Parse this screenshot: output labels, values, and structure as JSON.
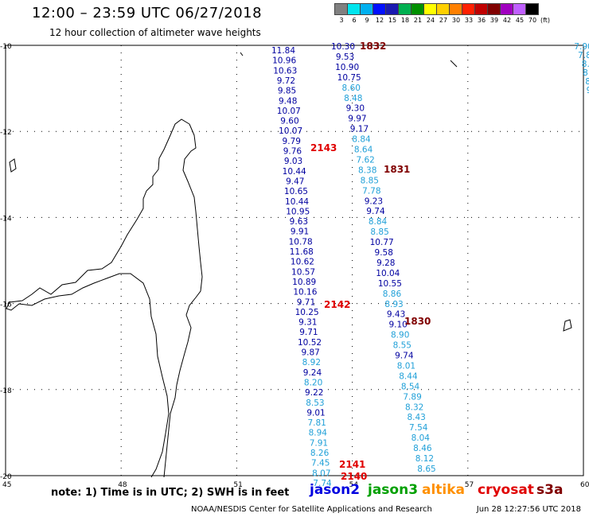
{
  "header": {
    "title": "12:00 – 23:59 UTC 06/27/2018",
    "subtitle": "12 hour collection of altimeter wave heights"
  },
  "scale": {
    "colors": [
      "#808080",
      "#00e5ee",
      "#00b0f0",
      "#0010ff",
      "#1a1ab0",
      "#00b050",
      "#009000",
      "#ffff00",
      "#ffd000",
      "#ff8000",
      "#ff2000",
      "#c00000",
      "#800000",
      "#a000c0",
      "#c060ff",
      "#000000"
    ],
    "labels": [
      "3",
      "6",
      "9",
      "12",
      "15",
      "18",
      "21",
      "24",
      "27",
      "30",
      "33",
      "36",
      "39",
      "42",
      "45",
      "70",
      "(ft)"
    ]
  },
  "map": {
    "lat_labels": [
      "-10",
      "-12",
      "-14",
      "-16",
      "-18",
      "-20"
    ],
    "lon_labels": [
      "45",
      "48",
      "51",
      "54",
      "57",
      "60"
    ],
    "lon_range": [
      45,
      60
    ],
    "lat_range": [
      -10,
      -20
    ]
  },
  "tracks": {
    "jason2_colors": {
      "dark": "#0000a0",
      "light": "#20a0d8"
    },
    "pass_colors": {
      "jason2": "#e00000",
      "s3a": "#800000"
    },
    "track_A": [
      {
        "v": "11.84",
        "c": "d"
      },
      {
        "v": "10.96",
        "c": "d"
      },
      {
        "v": "10.63",
        "c": "d"
      },
      {
        "v": "9.72",
        "c": "d"
      },
      {
        "v": "9.85",
        "c": "d"
      },
      {
        "v": "9.48",
        "c": "d"
      },
      {
        "v": "10.07",
        "c": "d"
      },
      {
        "v": "9.60",
        "c": "d"
      },
      {
        "v": "10.07",
        "c": "d"
      },
      {
        "v": "9.79",
        "c": "d"
      },
      {
        "v": "9.76",
        "c": "d"
      },
      {
        "v": "9.03",
        "c": "d"
      },
      {
        "v": "10.44",
        "c": "d"
      },
      {
        "v": "9.47",
        "c": "d"
      },
      {
        "v": "10.65",
        "c": "d"
      },
      {
        "v": "10.44",
        "c": "d"
      },
      {
        "v": "10.95",
        "c": "d"
      },
      {
        "v": "9.63",
        "c": "d"
      },
      {
        "v": "9.91",
        "c": "d"
      },
      {
        "v": "10.78",
        "c": "d"
      },
      {
        "v": "11.68",
        "c": "d"
      },
      {
        "v": "10.62",
        "c": "d"
      },
      {
        "v": "10.57",
        "c": "d"
      },
      {
        "v": "10.89",
        "c": "d"
      },
      {
        "v": "10.16",
        "c": "d"
      },
      {
        "v": "9.71",
        "c": "d"
      },
      {
        "v": "10.25",
        "c": "d"
      },
      {
        "v": "9.31",
        "c": "d"
      },
      {
        "v": "9.71",
        "c": "d"
      },
      {
        "v": "10.52",
        "c": "d"
      },
      {
        "v": "9.87",
        "c": "d"
      },
      {
        "v": "8.92",
        "c": "l"
      },
      {
        "v": "9.24",
        "c": "d"
      },
      {
        "v": "8.20",
        "c": "l"
      },
      {
        "v": "9.22",
        "c": "d"
      },
      {
        "v": "8.53",
        "c": "l"
      },
      {
        "v": "9.01",
        "c": "d"
      },
      {
        "v": "7.81",
        "c": "l"
      },
      {
        "v": "8.94",
        "c": "l"
      },
      {
        "v": "7.91",
        "c": "l"
      },
      {
        "v": "8.26",
        "c": "l"
      },
      {
        "v": "7.45",
        "c": "l"
      },
      {
        "v": "8.07",
        "c": "l"
      },
      {
        "v": "7.74",
        "c": "l"
      }
    ],
    "track_B": [
      {
        "v": "10.30",
        "c": "d"
      },
      {
        "v": "9.53",
        "c": "d"
      },
      {
        "v": "10.90",
        "c": "d"
      },
      {
        "v": "10.75",
        "c": "d"
      },
      {
        "v": "8.60",
        "c": "l"
      },
      {
        "v": "8.48",
        "c": "l"
      },
      {
        "v": "9.30",
        "c": "d"
      },
      {
        "v": "9.97",
        "c": "d"
      },
      {
        "v": "9.17",
        "c": "d"
      },
      {
        "v": "8.84",
        "c": "l"
      },
      {
        "v": "8.64",
        "c": "l"
      },
      {
        "v": "7.62",
        "c": "l"
      },
      {
        "v": "8.38",
        "c": "l"
      },
      {
        "v": "8.85",
        "c": "l"
      },
      {
        "v": "7.78",
        "c": "l"
      },
      {
        "v": "9.23",
        "c": "d"
      },
      {
        "v": "9.74",
        "c": "d"
      },
      {
        "v": "8.84",
        "c": "l"
      },
      {
        "v": "8.85",
        "c": "l"
      },
      {
        "v": "10.77",
        "c": "d"
      },
      {
        "v": "9.58",
        "c": "d"
      },
      {
        "v": "9.28",
        "c": "d"
      },
      {
        "v": "10.04",
        "c": "d"
      },
      {
        "v": "10.55",
        "c": "d"
      },
      {
        "v": "8.86",
        "c": "l"
      },
      {
        "v": "8.93",
        "c": "l"
      },
      {
        "v": "9.43",
        "c": "d"
      },
      {
        "v": "9.10",
        "c": "d"
      },
      {
        "v": "8.90",
        "c": "l"
      },
      {
        "v": "8.55",
        "c": "l"
      },
      {
        "v": "9.74",
        "c": "d"
      },
      {
        "v": "8.01",
        "c": "l"
      },
      {
        "v": "8.44",
        "c": "l"
      },
      {
        "v": "8.54",
        "c": "l"
      },
      {
        "v": "7.89",
        "c": "l"
      },
      {
        "v": "8.32",
        "c": "l"
      },
      {
        "v": "8.43",
        "c": "l"
      },
      {
        "v": "7.54",
        "c": "l"
      },
      {
        "v": "8.04",
        "c": "l"
      },
      {
        "v": "8.46",
        "c": "l"
      },
      {
        "v": "8.12",
        "c": "l"
      },
      {
        "v": "8.65",
        "c": "l"
      }
    ],
    "track_C": [
      {
        "v": "7.90",
        "c": "l"
      },
      {
        "v": "7.8",
        "c": "l"
      },
      {
        "v": "8.",
        "c": "l"
      },
      {
        "v": "8.",
        "c": "l"
      },
      {
        "v": "8",
        "c": "l"
      },
      {
        "v": "9",
        "c": "l"
      }
    ],
    "pass_labels": [
      {
        "text": "1832",
        "sat": "s3a"
      },
      {
        "text": "2143",
        "sat": "jason2"
      },
      {
        "text": "1831",
        "sat": "s3a"
      },
      {
        "text": "2142",
        "sat": "jason2"
      },
      {
        "text": "1830",
        "sat": "s3a"
      },
      {
        "text": "2141",
        "sat": "jason2"
      },
      {
        "text": "2140",
        "sat": "jason2"
      }
    ]
  },
  "legend": {
    "note": "note: 1) Time is in UTC; 2) SWH is in feet",
    "satellites": [
      {
        "name": "jason2",
        "color": "#0000e0"
      },
      {
        "name": "jason3",
        "color": "#00a000"
      },
      {
        "name": "altika",
        "color": "#ff9000"
      },
      {
        "name": "cryosat",
        "color": "#e00000"
      },
      {
        "name": "s3a",
        "color": "#800000"
      }
    ]
  },
  "footer": {
    "agency": "NOAA/NESDIS Center for Satellite Applications and Research",
    "timestamp": "Jun 28 12:27:56 UTC 2018"
  }
}
